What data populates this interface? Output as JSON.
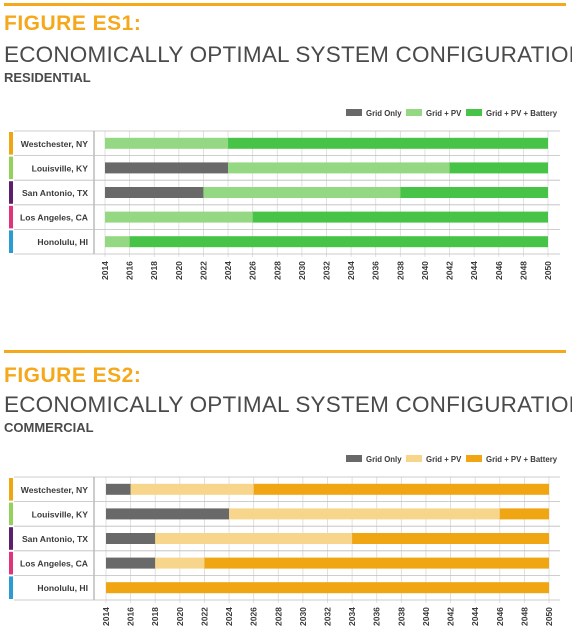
{
  "figures": [
    {
      "label": "FIGURE ES1:",
      "title": "ECONOMICALLY OPTIMAL SYSTEM CONFIGURATION",
      "subtitle": "RESIDENTIAL",
      "colors": {
        "grid_only": "#696969",
        "grid_pv": "#94d883",
        "grid_pv_battery": "#47c447"
      }
    },
    {
      "label": "FIGURE ES2:",
      "title": "ECONOMICALLY OPTIMAL SYSTEM CONFIGURATION",
      "subtitle": "COMMERCIAL",
      "colors": {
        "grid_only": "#696969",
        "grid_pv": "#f7d58a",
        "grid_pv_battery": "#f0a513"
      }
    }
  ],
  "city_colors": [
    "#f0a513",
    "#94d05c",
    "#5b1f6e",
    "#e0337a",
    "#2a9bd3"
  ],
  "chart_data": [
    {
      "type": "bar",
      "orientation": "horizontal-stacked-timeline",
      "categories": [
        "Westchester, NY",
        "Louisville, KY",
        "San Antonio, TX",
        "Los Angeles, CA",
        "Honolulu, HI"
      ],
      "legend": [
        "Grid Only",
        "Grid + PV",
        "Grid + PV + Battery"
      ],
      "legend_position": "top-right",
      "x_ticks": [
        "2014",
        "2016",
        "2018",
        "2020",
        "2022",
        "2024",
        "2026",
        "2028",
        "2030",
        "2032",
        "2034",
        "2036",
        "2038",
        "2040",
        "2042",
        "2044",
        "2046",
        "2048",
        "2050"
      ],
      "xlim": [
        2014,
        2050
      ],
      "grid": true,
      "segments": [
        [
          {
            "config": "Grid + PV",
            "start": 2014,
            "end": 2024
          },
          {
            "config": "Grid + PV + Battery",
            "start": 2024,
            "end": 2050
          }
        ],
        [
          {
            "config": "Grid Only",
            "start": 2014,
            "end": 2024
          },
          {
            "config": "Grid + PV",
            "start": 2024,
            "end": 2042
          },
          {
            "config": "Grid + PV + Battery",
            "start": 2042,
            "end": 2050
          }
        ],
        [
          {
            "config": "Grid Only",
            "start": 2014,
            "end": 2022
          },
          {
            "config": "Grid + PV",
            "start": 2022,
            "end": 2038
          },
          {
            "config": "Grid + PV + Battery",
            "start": 2038,
            "end": 2050
          }
        ],
        [
          {
            "config": "Grid + PV",
            "start": 2014,
            "end": 2026
          },
          {
            "config": "Grid + PV + Battery",
            "start": 2026,
            "end": 2050
          }
        ],
        [
          {
            "config": "Grid + PV",
            "start": 2014,
            "end": 2016
          },
          {
            "config": "Grid + PV + Battery",
            "start": 2016,
            "end": 2050
          }
        ]
      ]
    },
    {
      "type": "bar",
      "orientation": "horizontal-stacked-timeline",
      "categories": [
        "Westchester, NY",
        "Louisville, KY",
        "San Antonio, TX",
        "Los Angeles, CA",
        "Honolulu, HI"
      ],
      "legend": [
        "Grid Only",
        "Grid + PV",
        "Grid + PV + Battery"
      ],
      "legend_position": "top-right",
      "x_ticks": [
        "2014",
        "2016",
        "2018",
        "2020",
        "2022",
        "2024",
        "2026",
        "2028",
        "2030",
        "2032",
        "2034",
        "2036",
        "2038",
        "2040",
        "2042",
        "2044",
        "2046",
        "2048",
        "2050"
      ],
      "xlim": [
        2014,
        2050
      ],
      "grid": true,
      "segments": [
        [
          {
            "config": "Grid Only",
            "start": 2014,
            "end": 2016
          },
          {
            "config": "Grid + PV",
            "start": 2016,
            "end": 2026
          },
          {
            "config": "Grid + PV + Battery",
            "start": 2026,
            "end": 2050
          }
        ],
        [
          {
            "config": "Grid Only",
            "start": 2014,
            "end": 2024
          },
          {
            "config": "Grid + PV",
            "start": 2024,
            "end": 2046
          },
          {
            "config": "Grid + PV + Battery",
            "start": 2046,
            "end": 2050
          }
        ],
        [
          {
            "config": "Grid Only",
            "start": 2014,
            "end": 2018
          },
          {
            "config": "Grid + PV",
            "start": 2018,
            "end": 2034
          },
          {
            "config": "Grid + PV + Battery",
            "start": 2034,
            "end": 2050
          }
        ],
        [
          {
            "config": "Grid Only",
            "start": 2014,
            "end": 2018
          },
          {
            "config": "Grid + PV",
            "start": 2018,
            "end": 2022
          },
          {
            "config": "Grid + PV + Battery",
            "start": 2022,
            "end": 2050
          }
        ],
        [
          {
            "config": "Grid + PV + Battery",
            "start": 2014,
            "end": 2050
          }
        ]
      ]
    }
  ]
}
